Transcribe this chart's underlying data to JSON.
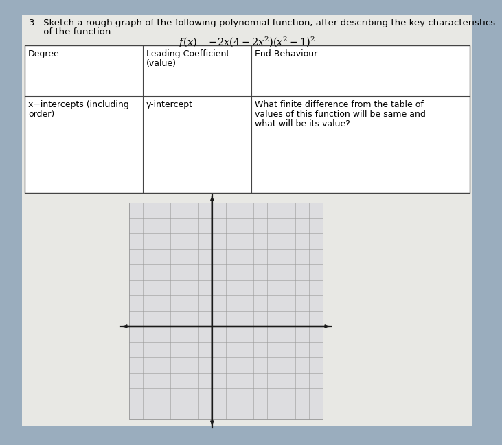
{
  "bg_color": "#9aadbe",
  "paper_color": "#e8e8e4",
  "grid_bg_color": "#dcdce0",
  "title_line1": "3.  Sketch a rough graph of the following polynomial function, after describing the key characteristics",
  "title_line2": "     of the function.",
  "formula": "$f(x) = -2x(4 - 2x^2)(x^2 - 1)^2$",
  "cell_texts": {
    "r1c1": "Degree",
    "r1c2_1": "Leading Coefficient",
    "r1c2_2": "(value)",
    "r1c3": "End Behaviour",
    "r2c1_1": "x−intercepts (including",
    "r2c1_2": "order)",
    "r2c2": "y-intercept",
    "r2c3_1": "What finite difference from the table of",
    "r2c3_2": "values of this function will be same and",
    "r2c3_3": "what will be its value?"
  },
  "title_fontsize": 9.5,
  "formula_fontsize": 10.5,
  "cell_fontsize": 9.0,
  "grid_rows": 14,
  "grid_cols": 14,
  "grid_line_color": "#999999",
  "axis_color": "#1a1a1a",
  "axis_lw": 1.6,
  "arrow_size": 6
}
